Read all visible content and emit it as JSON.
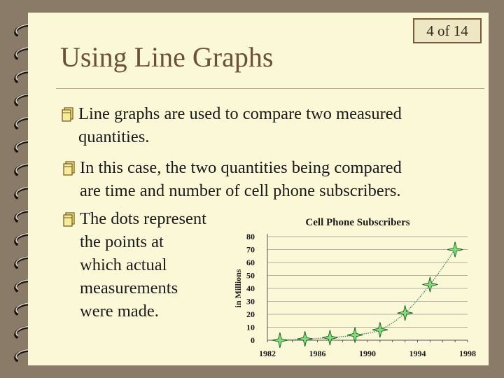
{
  "slide": {
    "counter": "4  of 14",
    "title": "Using Line Graphs",
    "bullets": [
      {
        "icon": "notebook-bullet-icon",
        "text_line1": "Line graphs are used to compare two measured",
        "text_line2": "quantities."
      },
      {
        "icon": "notebook-bullet-icon",
        "text_line1": "In this case, the two quantities being compared",
        "text_line2": "are time and number of cell phone subscribers."
      },
      {
        "icon": "notebook-bullet-icon",
        "lines": [
          "The dots represent",
          "the points at",
          "which actual",
          "measurements",
          "were made."
        ]
      }
    ]
  },
  "chart_data": {
    "type": "line",
    "title": "Cell Phone Subscribers",
    "xlabel": "",
    "ylabel": "in Millions",
    "x_tick_labels": [
      "1982",
      "1986",
      "1990",
      "1994",
      "1998"
    ],
    "y_tick_labels": [
      "0",
      "10",
      "20",
      "30",
      "40",
      "50",
      "60",
      "70",
      "80"
    ],
    "xlim": [
      1982,
      1998
    ],
    "ylim": [
      0,
      80
    ],
    "grid": "horizontal",
    "marker": "star",
    "colors": {
      "line": "#4a8a6a",
      "marker": "#7de07d",
      "marker_edge": "#1f5a1f"
    },
    "series": [
      {
        "x": [
          1983,
          1985,
          1987,
          1989,
          1991,
          1993,
          1995,
          1997
        ],
        "values": [
          0,
          1,
          2,
          4,
          8,
          21,
          43,
          70
        ]
      }
    ]
  }
}
